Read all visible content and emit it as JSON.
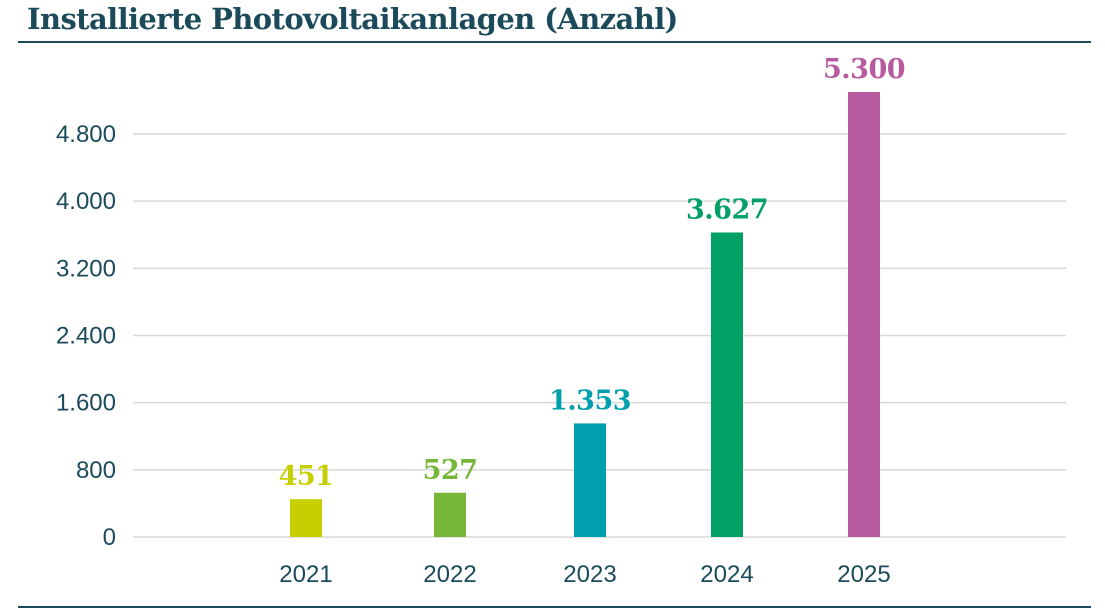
{
  "colors": {
    "title": "#1b4b5a",
    "axis": "#1b4b5a",
    "grid": "#d9d9d9"
  },
  "chart_data": {
    "type": "bar",
    "title": "Installierte Photovoltaikanlagen (Anzahl)",
    "xlabel": "",
    "ylabel": "",
    "categories": [
      "2021",
      "2022",
      "2023",
      "2024",
      "2025"
    ],
    "values": [
      451,
      527,
      1353,
      3627,
      5300
    ],
    "value_labels": [
      "451",
      "527",
      "1.353",
      "3.627",
      "5.300"
    ],
    "bar_colors": [
      "#c8cf00",
      "#76b639",
      "#009fae",
      "#00a067",
      "#b75aa0"
    ],
    "ylim": [
      0,
      5300
    ],
    "yticks": [
      0,
      800,
      1600,
      2400,
      3200,
      4000,
      4800
    ],
    "ytick_labels": [
      "0",
      "800",
      "1.600",
      "2.400",
      "3.200",
      "4.000",
      "4.800"
    ],
    "grid": true,
    "legend": "none"
  }
}
